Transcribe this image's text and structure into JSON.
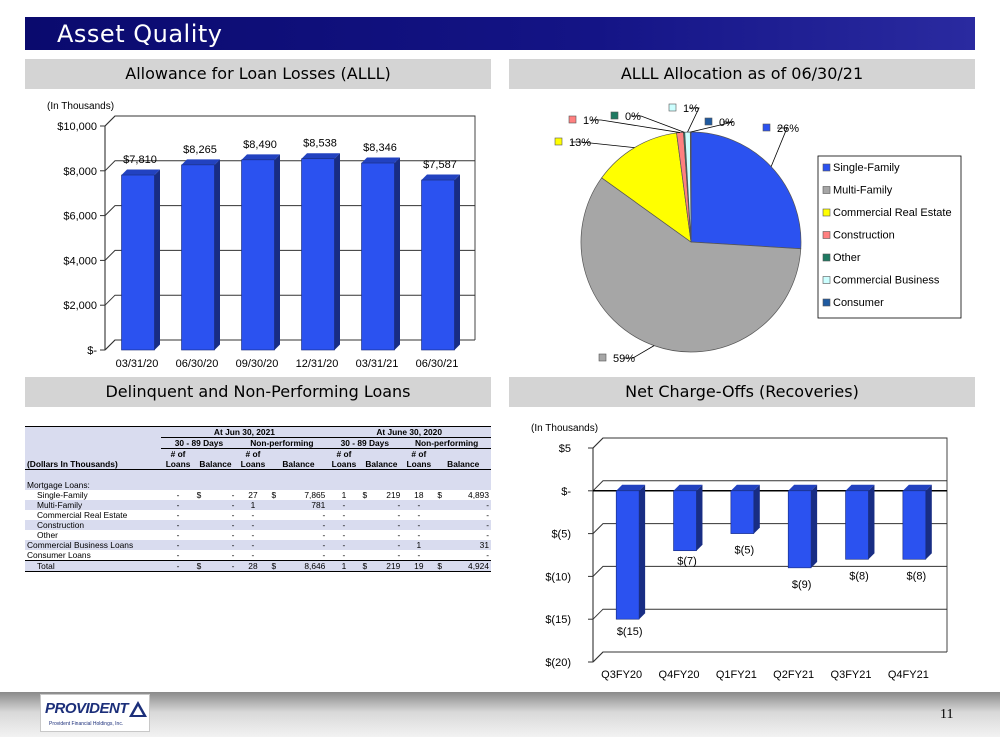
{
  "slide": {
    "title": "Asset Quality",
    "page_number": "11",
    "logo_text": "PROVIDENT",
    "logo_subtext": "Provident Financial Holdings, Inc."
  },
  "sections": {
    "allowance": "Allowance for Loan Losses (ALLL)",
    "allocation": "ALLL Allocation as of 06/30/21",
    "delinquent": "Delinquent and Non-Performing Loans",
    "chargeoffs": "Net Charge-Offs (Recoveries)"
  },
  "chart_data": [
    {
      "type": "bar",
      "unit_note": "(In Thousands)",
      "categories": [
        "03/31/20",
        "06/30/20",
        "09/30/20",
        "12/31/20",
        "03/31/21",
        "06/30/21"
      ],
      "values": [
        7810,
        8265,
        8490,
        8538,
        8346,
        7587
      ],
      "value_labels": [
        "$7,810",
        "$8,265",
        "$8,490",
        "$8,538",
        "$8,346",
        "$7,587"
      ],
      "yticks": [
        "$10,000",
        "$8,000",
        "$6,000",
        "$4,000",
        "$2,000",
        "$-"
      ],
      "ylim": [
        0,
        10000
      ],
      "color": "#2b52f0",
      "grid": true
    },
    {
      "type": "pie",
      "slices": [
        {
          "name": "Single-Family",
          "value": 26,
          "label": "26%",
          "color": "#2b52f0"
        },
        {
          "name": "Multi-Family",
          "value": 59,
          "label": "59%",
          "color": "#a6a6a6"
        },
        {
          "name": "Commercial Real Estate",
          "value": 13,
          "label": "13%",
          "color": "#ffff00"
        },
        {
          "name": "Construction",
          "value": 1,
          "label": "1%",
          "color": "#ff8080"
        },
        {
          "name": "Other",
          "value": 0.2,
          "label": "0%",
          "color": "#1f7a62"
        },
        {
          "name": "Commercial Business",
          "value": 0.8,
          "label": "1%",
          "color": "#ccffff"
        },
        {
          "name": "Consumer",
          "value": 0.1,
          "label": "0%",
          "color": "#1f5aa0"
        }
      ],
      "legend_position": "right"
    },
    {
      "type": "bar",
      "unit_note": "(In Thousands)",
      "categories": [
        "Q3FY20",
        "Q4FY20",
        "Q1FY21",
        "Q2FY21",
        "Q3FY21",
        "Q4FY21"
      ],
      "values": [
        -15,
        -7,
        -5,
        -9,
        -8,
        -8
      ],
      "value_labels": [
        "$(15)",
        "$(7)",
        "$(5)",
        "$(9)",
        "$(8)",
        "$(8)"
      ],
      "yticks": [
        "$5",
        "$-",
        "$(5)",
        "$(10)",
        "$(15)",
        "$(20)"
      ],
      "ylim": [
        -20,
        5
      ],
      "color": "#2b52f0",
      "grid": true
    }
  ],
  "table": {
    "group_headers": [
      "At Jun 30, 2021",
      "At June 30, 2020"
    ],
    "sub_headers": [
      "30 - 89 Days",
      "Non-performing",
      "30 - 89 Days",
      "Non-performing"
    ],
    "col_top": "# of",
    "col_loans": "Loans",
    "col_balance": "Balance",
    "row_header": "(Dollars In Thousands)",
    "section_label": "Mortgage Loans:",
    "rows": [
      {
        "label": "Single-Family",
        "indent": true,
        "c": [
          "-",
          "$",
          "-",
          "27",
          "$",
          "7,865",
          "1",
          "$",
          "219",
          "18",
          "$",
          "4,893"
        ]
      },
      {
        "label": "Multi-Family",
        "indent": true,
        "c": [
          "-",
          "",
          "-",
          "1",
          "",
          "781",
          "-",
          "",
          "-",
          "-",
          "",
          "-"
        ]
      },
      {
        "label": "Commercial Real Estate",
        "indent": true,
        "c": [
          "-",
          "",
          "-",
          "-",
          "",
          "-",
          "-",
          "",
          "-",
          "-",
          "",
          "-"
        ]
      },
      {
        "label": "Construction",
        "indent": true,
        "c": [
          "-",
          "",
          "-",
          "-",
          "",
          "-",
          "-",
          "",
          "-",
          "-",
          "",
          "-"
        ]
      },
      {
        "label": "Other",
        "indent": true,
        "c": [
          "-",
          "",
          "-",
          "-",
          "",
          "-",
          "-",
          "",
          "-",
          "-",
          "",
          "-"
        ]
      },
      {
        "label": "Commercial Business Loans",
        "indent": false,
        "c": [
          "-",
          "",
          "-",
          "-",
          "",
          "-",
          "-",
          "",
          "-",
          "1",
          "",
          "31"
        ]
      },
      {
        "label": "Consumer Loans",
        "indent": false,
        "c": [
          "-",
          "",
          "-",
          "-",
          "",
          "-",
          "-",
          "",
          "-",
          "-",
          "",
          "-"
        ]
      },
      {
        "label": "Total",
        "indent": true,
        "c": [
          "-",
          "$",
          "-",
          "28",
          "$",
          "8,646",
          "1",
          "$",
          "219",
          "19",
          "$",
          "4,924"
        ]
      }
    ]
  }
}
